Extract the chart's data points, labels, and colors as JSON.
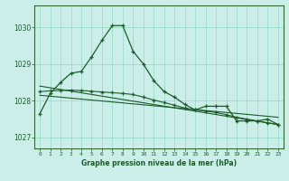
{
  "title": "Graphe pression niveau de la mer (hPa)",
  "bg_color": "#cceee8",
  "plot_bg_color": "#cceee8",
  "grid_color": "#99ddcc",
  "line_color": "#1a5c2a",
  "spine_color": "#336633",
  "xlim": [
    -0.5,
    23.5
  ],
  "ylim": [
    1026.7,
    1030.6
  ],
  "yticks": [
    1027,
    1028,
    1029,
    1030
  ],
  "xtick_labels": [
    "0",
    "1",
    "2",
    "3",
    "4",
    "5",
    "6",
    "7",
    "8",
    "9",
    "10",
    "11",
    "12",
    "13",
    "14",
    "15",
    "16",
    "17",
    "18",
    "19",
    "20",
    "21",
    "22",
    "23"
  ],
  "series1_x": [
    0,
    1,
    2,
    3,
    4,
    5,
    6,
    7,
    8,
    9,
    10,
    11,
    12,
    13,
    14,
    15,
    16,
    17,
    18,
    19,
    20,
    21,
    22,
    23
  ],
  "series1_y": [
    1027.65,
    1028.2,
    1028.5,
    1028.75,
    1028.8,
    1029.2,
    1029.65,
    1030.05,
    1030.05,
    1029.35,
    1029.0,
    1028.55,
    1028.25,
    1028.1,
    1027.9,
    1027.75,
    1027.85,
    1027.85,
    1027.85,
    1027.45,
    1027.45,
    1027.45,
    1027.5,
    1027.35
  ],
  "series2_x": [
    0,
    1,
    2,
    3,
    4,
    5,
    6,
    7,
    8,
    9,
    10,
    11,
    12,
    13,
    14,
    15,
    16,
    17,
    18,
    19,
    20,
    21,
    22,
    23
  ],
  "series2_y": [
    1028.25,
    1028.27,
    1028.28,
    1028.29,
    1028.28,
    1028.26,
    1028.24,
    1028.22,
    1028.2,
    1028.17,
    1028.1,
    1028.02,
    1027.95,
    1027.88,
    1027.8,
    1027.75,
    1027.72,
    1027.68,
    1027.62,
    1027.55,
    1027.5,
    1027.45,
    1027.4,
    1027.35
  ],
  "series3_x": [
    0,
    23
  ],
  "series3_y": [
    1028.4,
    1027.35
  ],
  "series4_x": [
    0,
    23
  ],
  "series4_y": [
    1028.15,
    1027.55
  ]
}
